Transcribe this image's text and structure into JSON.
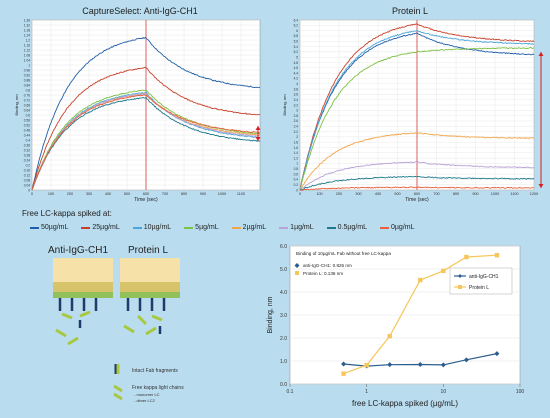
{
  "colors": {
    "background": "#b9dcef",
    "c50": "#1f5fa8",
    "c25": "#c8402a",
    "c10": "#4aa6d8",
    "c5": "#7dc242",
    "c2": "#f2a64b",
    "c1": "#b9a3d6",
    "c05": "#1e7a8c",
    "c0": "#e8603c",
    "marker": "#d42020",
    "antiIgG": "#2b5e8e",
    "proteinL": "#f7c65a"
  },
  "chart_data": [
    {
      "type": "line",
      "title": "CaptureSelect: Anti-IgG-CH1",
      "xlabel": "Time (sec)",
      "ylabel": "Binding, nm",
      "xlim": [
        0,
        1200
      ],
      "ylim": [
        0,
        1.36
      ],
      "xticks": [
        "0",
        "100",
        "200",
        "300",
        "400",
        "500",
        "600",
        "700",
        "800",
        "900",
        "1000",
        "1100"
      ],
      "yticks": [
        "0",
        "0.04",
        "0.08",
        "0.12",
        "0.16",
        "0.2",
        "0.24",
        "0.28",
        "0.32",
        "0.36",
        "0.4",
        "0.44",
        "0.48",
        "0.52",
        "0.56",
        "0.6",
        "0.64",
        "0.68",
        "0.72",
        "0.76",
        "0.8",
        "0.84",
        "0.88",
        "0.92",
        "0.96",
        "1",
        "1.04",
        "1.08",
        "1.12",
        "1.16",
        "1.2",
        "1.24",
        "1.28",
        "1.32",
        "1.36"
      ],
      "series": [
        {
          "key": "c50",
          "assoc_end": 1.22,
          "diss_end": 0.82
        },
        {
          "key": "c25",
          "assoc_end": 0.98,
          "diss_end": 0.6
        },
        {
          "key": "c10",
          "assoc_end": 0.78,
          "diss_end": 0.42
        },
        {
          "key": "c5",
          "assoc_end": 0.8,
          "diss_end": 0.45
        },
        {
          "key": "c2",
          "assoc_end": 0.77,
          "diss_end": 0.44
        },
        {
          "key": "c1",
          "assoc_end": 0.77,
          "diss_end": 0.43
        },
        {
          "key": "c05",
          "assoc_end": 0.74,
          "diss_end": 0.39
        },
        {
          "key": "c0",
          "assoc_end": 0.76,
          "diss_end": 0.46
        }
      ]
    },
    {
      "type": "line",
      "title": "Protein L",
      "xlabel": "Time (sec)",
      "ylabel": "Binding, nm",
      "xlim": [
        0,
        1200
      ],
      "ylim": [
        0,
        6.4
      ],
      "xticks": [
        "0",
        "100",
        "200",
        "300",
        "400",
        "500",
        "600",
        "700",
        "800",
        "900",
        "1000",
        "1100",
        "1200"
      ],
      "yticks": [
        "0",
        "0.2",
        "0.4",
        "0.6",
        "0.8",
        "1",
        "1.2",
        "1.4",
        "1.6",
        "1.8",
        "2",
        "2.2",
        "2.4",
        "2.6",
        "2.8",
        "3",
        "3.2",
        "3.4",
        "3.6",
        "3.8",
        "4",
        "4.2",
        "4.4",
        "4.6",
        "4.8",
        "5",
        "5.2",
        "5.4",
        "5.6",
        "5.8",
        "6",
        "6.2",
        "6.4"
      ],
      "series": [
        {
          "key": "c50",
          "assoc_end": 5.9,
          "diss_end": 5.1
        },
        {
          "key": "c25",
          "assoc_end": 6.25,
          "diss_end": 5.6
        },
        {
          "key": "c10",
          "assoc_end": 6.0,
          "diss_end": 5.5
        },
        {
          "key": "c5",
          "assoc_end": 5.2,
          "diss_end": 5.35
        },
        {
          "key": "c2",
          "assoc_end": 2.15,
          "diss_end": 1.95
        },
        {
          "key": "c1",
          "assoc_end": 1.05,
          "diss_end": 0.85
        },
        {
          "key": "c05",
          "assoc_end": 0.5,
          "diss_end": 0.42
        },
        {
          "key": "c0",
          "assoc_end": 0.1,
          "diss_end": 0.08
        }
      ]
    },
    {
      "type": "line",
      "xlabel": "free LC-kappa spiked (µg/mL)",
      "ylabel": "Binding, nm",
      "xscale": "log",
      "xlim": [
        0.1,
        100
      ],
      "ylim": [
        0,
        6.0
      ],
      "xticks": [
        "0.1",
        "1",
        "10",
        "100"
      ],
      "yticks": [
        "0.0",
        "1.0",
        "2.0",
        "3.0",
        "4.0",
        "5.0",
        "6.0"
      ],
      "annotation": {
        "title": "Binding of 10µg/mL Fab without free LC-kappa",
        "line1": "anti-IgG-CH1: 0.826 nm",
        "line2": "Protein L: 0.136 nm"
      },
      "legend": [
        "anti-IgG-CH1",
        "Protein L"
      ],
      "series": [
        {
          "name": "anti-IgG-CH1",
          "x": [
            0.5,
            1,
            2,
            5,
            10,
            20,
            50
          ],
          "y": [
            0.87,
            0.78,
            0.84,
            0.85,
            0.83,
            1.05,
            1.32
          ]
        },
        {
          "name": "Protein L",
          "x": [
            0.5,
            1,
            2,
            5,
            10,
            20,
            50
          ],
          "y": [
            0.45,
            0.82,
            2.08,
            4.52,
            4.92,
            5.52,
            5.6
          ]
        }
      ]
    }
  ],
  "legend": {
    "heading": "Free LC-kappa spiked at:",
    "items": [
      {
        "label": "50µg/mL",
        "key": "c50"
      },
      {
        "label": "25µg/mL",
        "key": "c25"
      },
      {
        "label": "10µg/mL",
        "key": "c10"
      },
      {
        "label": "5µg/mL",
        "key": "c5"
      },
      {
        "label": "2µg/mL",
        "key": "c2"
      },
      {
        "label": "1µg/mL",
        "key": "c1"
      },
      {
        "label": "0.5µg/mL",
        "key": "c05"
      },
      {
        "label": "0µg/mL",
        "key": "c0"
      }
    ]
  },
  "diagram": {
    "anti_title": "Anti-IgG-CH1",
    "protein_title": "Protein L",
    "fab_label": "Intact Fab fragments",
    "lc_label": "Free kappa light chains",
    "lc_sub1": "- monomer LC",
    "lc_sub2": "- dimer LC2"
  }
}
